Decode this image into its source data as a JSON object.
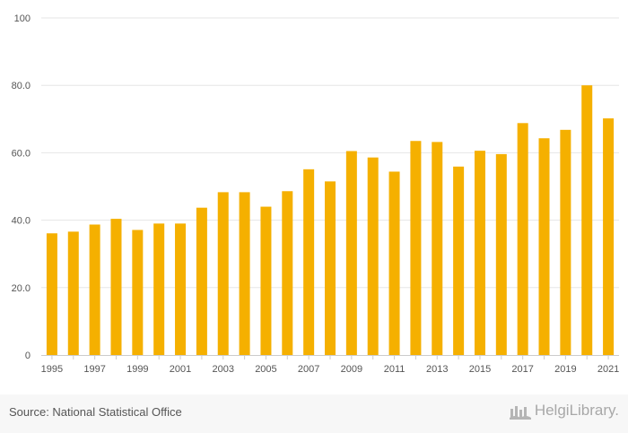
{
  "chart_data": {
    "type": "bar",
    "title": "",
    "xlabel": "",
    "ylabel": "",
    "ylim": [
      0,
      100
    ],
    "yticks": [
      0,
      20,
      40,
      60,
      80,
      100
    ],
    "ytick_labels": [
      "0",
      "20.0",
      "40.0",
      "60.0",
      "80.0",
      "100"
    ],
    "categories": [
      "1995",
      "1996",
      "1997",
      "1998",
      "1999",
      "2000",
      "2001",
      "2002",
      "2003",
      "2004",
      "2005",
      "2006",
      "2007",
      "2008",
      "2009",
      "2010",
      "2011",
      "2012",
      "2013",
      "2014",
      "2015",
      "2016",
      "2017",
      "2018",
      "2019",
      "2020",
      "2021"
    ],
    "xtick_labels": [
      "1995",
      "1997",
      "1999",
      "2001",
      "2003",
      "2005",
      "2007",
      "2009",
      "2011",
      "2013",
      "2015",
      "2017",
      "2019",
      "2021"
    ],
    "values": [
      36.1,
      36.6,
      38.7,
      40.4,
      37.1,
      39.0,
      39.0,
      43.7,
      48.3,
      48.3,
      44.0,
      48.6,
      55.1,
      51.5,
      60.5,
      58.6,
      54.4,
      63.5,
      63.2,
      55.9,
      60.6,
      59.6,
      68.8,
      64.3,
      66.8,
      80.0,
      70.2
    ],
    "bar_color": "#f5b000",
    "grid": true
  },
  "footer": {
    "source": "Source: National Statistical Office",
    "logo_text": "HelgiLibrary.",
    "logo_icon": "library-icon"
  }
}
